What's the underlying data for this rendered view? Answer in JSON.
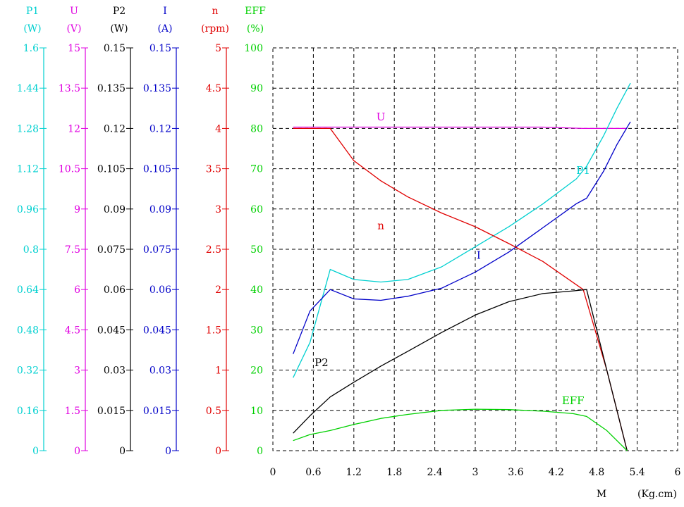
{
  "chart_data": {
    "type": "line",
    "title": "",
    "grid": true,
    "x_axis": {
      "label": "M",
      "unit": "(Kg.cm)",
      "min": 0,
      "max": 6,
      "ticks": [
        "0",
        "0.6",
        "1.2",
        "1.8",
        "2.4",
        "3",
        "3.6",
        "4.2",
        "4.8",
        "5.4",
        "6"
      ]
    },
    "y_axes": [
      {
        "key": "P1",
        "name": "P1",
        "unit": "(W)",
        "color": "#00d0d0",
        "min": 0,
        "max": 1.6,
        "ticks": [
          "0",
          "0.16",
          "0.32",
          "0.48",
          "0.64",
          "0.8",
          "0.96",
          "1.12",
          "1.28",
          "1.44",
          "1.6"
        ]
      },
      {
        "key": "U",
        "name": "U",
        "unit": "(V)",
        "color": "#e000e0",
        "min": 0,
        "max": 15,
        "ticks": [
          "0",
          "1.5",
          "3",
          "4.5",
          "6",
          "7.5",
          "9",
          "10.5",
          "12",
          "13.5",
          "15"
        ]
      },
      {
        "key": "P2",
        "name": "P2",
        "unit": "(W)",
        "color": "#000000",
        "min": 0,
        "max": 0.15,
        "ticks": [
          "0",
          "0.015",
          "0.03",
          "0.045",
          "0.06",
          "0.075",
          "0.09",
          "0.105",
          "0.12",
          "0.135",
          "0.15"
        ]
      },
      {
        "key": "I",
        "name": "I",
        "unit": "(A)",
        "color": "#0000c8",
        "min": 0,
        "max": 0.15,
        "ticks": [
          "0",
          "0.015",
          "0.03",
          "0.045",
          "0.06",
          "0.075",
          "0.09",
          "0.105",
          "0.12",
          "0.135",
          "0.15"
        ]
      },
      {
        "key": "n",
        "name": "n",
        "unit": "(rpm)",
        "color": "#e00000",
        "min": 0,
        "max": 5,
        "ticks": [
          "0",
          "0.5",
          "1",
          "1.5",
          "2",
          "2.5",
          "3",
          "3.5",
          "4",
          "4.5",
          "5"
        ]
      },
      {
        "key": "EFF",
        "name": "EFF",
        "unit": "(%)",
        "color": "#00d000",
        "min": 0,
        "max": 100,
        "ticks": [
          "0",
          "10",
          "20",
          "30",
          "40",
          "50",
          "60",
          "70",
          "80",
          "90",
          "100"
        ]
      }
    ],
    "series": [
      {
        "name": "U",
        "axis": "U",
        "color": "#e000e0",
        "label_at": [
          1.6,
          12.3
        ],
        "x": [
          0.3,
          4.0,
          4.6,
          5.25
        ],
        "y": [
          12.05,
          12.05,
          12.0,
          12.0
        ]
      },
      {
        "name": "P1",
        "axis": "P1",
        "color": "#00d0d0",
        "label_at": [
          4.6,
          1.1
        ],
        "x": [
          0.3,
          0.55,
          0.85,
          1.2,
          1.6,
          2.0,
          2.5,
          3.0,
          3.5,
          4.0,
          4.5,
          4.65,
          4.9,
          5.1,
          5.3
        ],
        "y": [
          0.29,
          0.43,
          0.72,
          0.68,
          0.67,
          0.68,
          0.73,
          0.81,
          0.89,
          0.98,
          1.08,
          1.13,
          1.25,
          1.36,
          1.46
        ]
      },
      {
        "name": "I",
        "axis": "I",
        "color": "#0000c8",
        "label_at": [
          3.05,
          0.0715
        ],
        "x": [
          0.3,
          0.55,
          0.85,
          1.2,
          1.6,
          2.0,
          2.5,
          3.0,
          3.5,
          4.0,
          4.5,
          4.65,
          4.9,
          5.1,
          5.3
        ],
        "y": [
          0.036,
          0.052,
          0.06,
          0.0565,
          0.056,
          0.0575,
          0.0605,
          0.0665,
          0.074,
          0.083,
          0.092,
          0.094,
          0.104,
          0.114,
          0.1225
        ]
      },
      {
        "name": "n",
        "axis": "n",
        "color": "#e00000",
        "label_at": [
          1.6,
          2.75
        ],
        "x": [
          0.3,
          0.85,
          1.2,
          1.6,
          2.0,
          2.5,
          3.0,
          3.5,
          4.0,
          4.6,
          4.95,
          5.25
        ],
        "y": [
          4.0,
          4.0,
          3.6,
          3.35,
          3.15,
          2.95,
          2.78,
          2.57,
          2.35,
          2.0,
          1.0,
          0.0
        ]
      },
      {
        "name": "P2",
        "axis": "P2",
        "color": "#000000",
        "label_at": [
          0.72,
          0.0315
        ],
        "x": [
          0.3,
          0.55,
          0.85,
          1.2,
          1.6,
          2.0,
          2.5,
          3.0,
          3.5,
          4.0,
          4.45,
          4.65,
          4.85,
          5.05,
          5.25
        ],
        "y": [
          0.0065,
          0.013,
          0.02,
          0.0255,
          0.0315,
          0.037,
          0.044,
          0.0505,
          0.0555,
          0.0585,
          0.0595,
          0.06,
          0.04,
          0.02,
          0.0
        ]
      },
      {
        "name": "EFF",
        "axis": "EFF",
        "color": "#00d000",
        "label_at": [
          4.45,
          11.5
        ],
        "x": [
          0.3,
          0.55,
          0.85,
          1.2,
          1.6,
          2.0,
          2.5,
          3.0,
          3.5,
          4.0,
          4.45,
          4.65,
          4.95,
          5.25
        ],
        "y": [
          2.5,
          4.0,
          5.0,
          6.5,
          8.0,
          9.0,
          10.0,
          10.3,
          10.2,
          9.8,
          9.2,
          8.5,
          5.0,
          0.0
        ]
      }
    ]
  }
}
